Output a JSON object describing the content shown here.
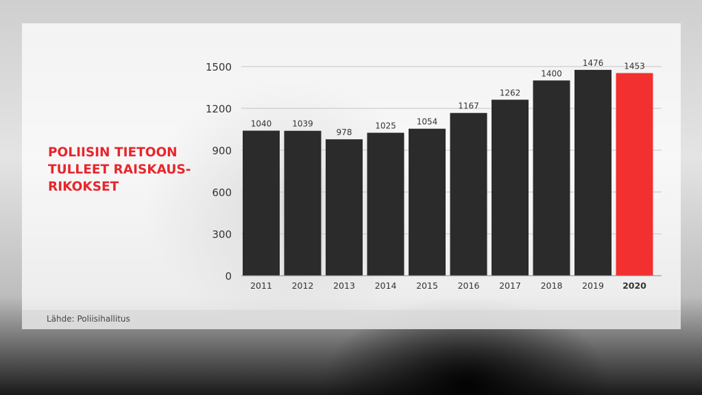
{
  "title_lines": [
    "POLIISIN TIETOON",
    "TULLEET RAISKAUS-",
    "RIKOKSET"
  ],
  "source": "Lähde: Poliisihallitus",
  "colors": {
    "bar": "#2b2b2b",
    "highlight": "#f23030",
    "title": "#e8262c"
  },
  "chart_data": {
    "type": "bar",
    "title": "POLIISIN TIETOON TULLEET RAISKAUSRIKOKSET",
    "categories": [
      "2011",
      "2012",
      "2013",
      "2014",
      "2015",
      "2016",
      "2017",
      "2018",
      "2019",
      "2020"
    ],
    "values": [
      1040,
      1039,
      978,
      1025,
      1054,
      1167,
      1262,
      1400,
      1476,
      1453
    ],
    "highlight_category": "2020",
    "yticks": [
      0,
      300,
      600,
      900,
      1200,
      1500
    ],
    "ylim": [
      0,
      1500
    ],
    "grid": true,
    "xlabel": "",
    "ylabel": ""
  }
}
